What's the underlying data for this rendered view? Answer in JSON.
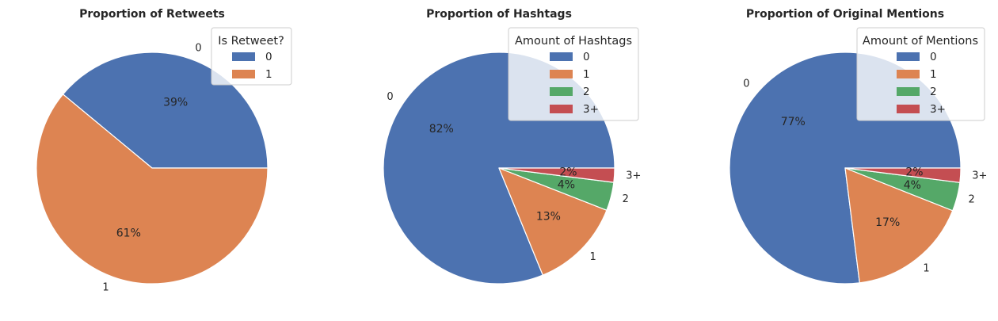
{
  "chart_data": [
    {
      "type": "pie",
      "title": "Proportion of Retweets",
      "legend_title": "Is Retweet?",
      "legend_position": "top-right",
      "categories": [
        "0",
        "1"
      ],
      "values": [
        39,
        61
      ],
      "value_labels": [
        "39%",
        "61%"
      ],
      "colors": [
        "#4c72b0",
        "#dd8452"
      ]
    },
    {
      "type": "pie",
      "title": "Proportion of Hashtags",
      "legend_title": "Amount of Hashtags",
      "legend_position": "top-right",
      "categories": [
        "0",
        "1",
        "2",
        "3+"
      ],
      "values": [
        82,
        13,
        4,
        2
      ],
      "value_labels": [
        "82%",
        "13%",
        "4%",
        "2%"
      ],
      "colors": [
        "#4c72b0",
        "#dd8452",
        "#55a868",
        "#c44e52"
      ]
    },
    {
      "type": "pie",
      "title": "Proportion of Original Mentions",
      "legend_title": "Amount of Mentions",
      "legend_position": "top-right",
      "categories": [
        "0",
        "1",
        "2",
        "3+"
      ],
      "values": [
        77,
        17,
        4,
        2
      ],
      "value_labels": [
        "77%",
        "17%",
        "4%",
        "2%"
      ],
      "colors": [
        "#4c72b0",
        "#dd8452",
        "#55a868",
        "#c44e52"
      ]
    }
  ]
}
